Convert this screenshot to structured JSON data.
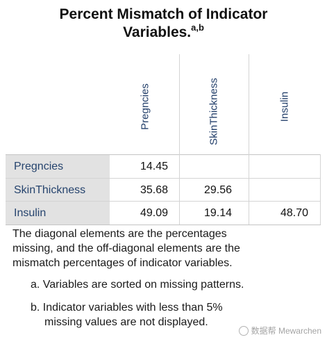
{
  "title": {
    "text": "Percent Mismatch of Indicator Variables.",
    "superscript": "a,b"
  },
  "columns": [
    "Pregncies",
    "SkinThickness",
    "Insulin"
  ],
  "rows": [
    {
      "label": "Pregncies",
      "values": [
        "14.45",
        "",
        ""
      ]
    },
    {
      "label": "SkinThickness",
      "values": [
        "35.68",
        "29.56",
        ""
      ]
    },
    {
      "label": "Insulin",
      "values": [
        "49.09",
        "19.14",
        "48.70"
      ]
    }
  ],
  "note": {
    "line1": "The diagonal elements are the percentages",
    "line2": "missing, and the off-diagonal elements are the",
    "line3": "mismatch percentages of indicator variables."
  },
  "footnotes": {
    "a": "a. Variables are sorted on missing patterns.",
    "b_line1": "b. Indicator variables with less than 5%",
    "b_line2": "missing values are not displayed."
  },
  "watermark": "数据帮 Mewarchen"
}
